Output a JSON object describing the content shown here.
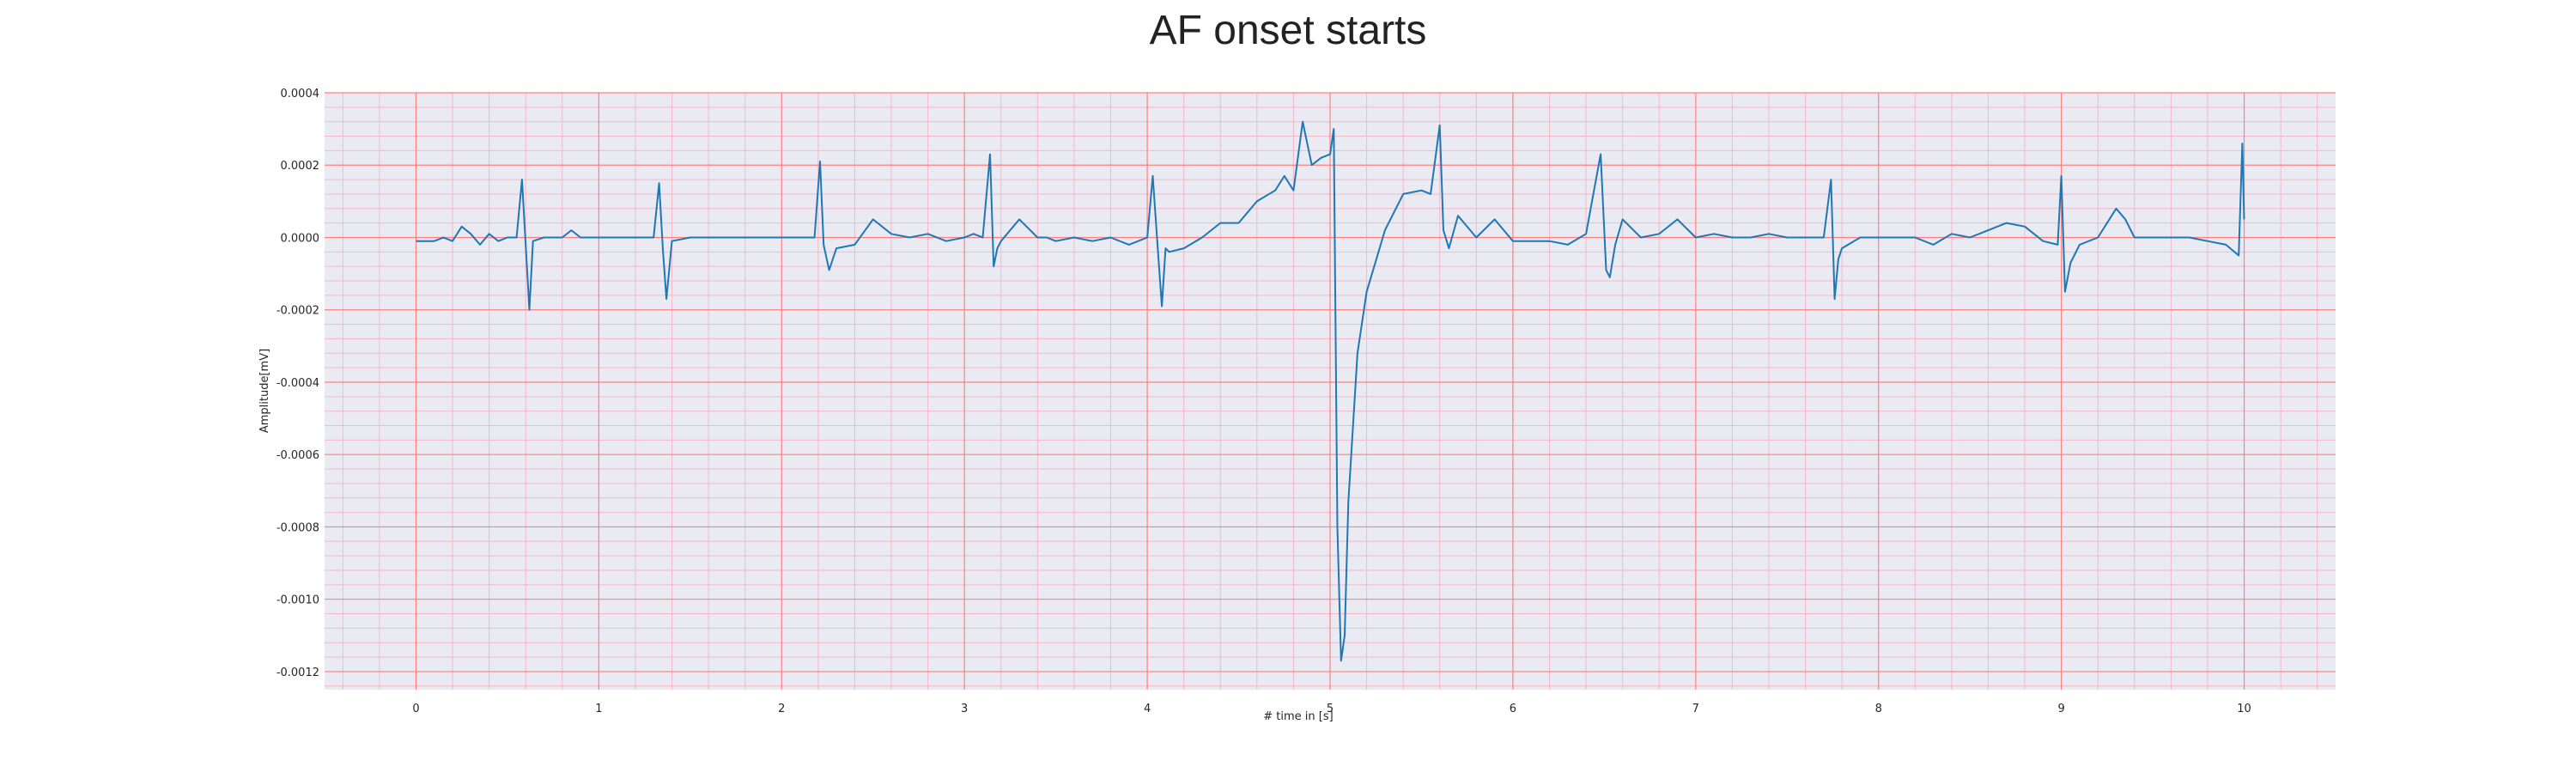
{
  "chart_data": {
    "type": "line",
    "title": "AF onset starts",
    "xlabel": "# time in [s]",
    "ylabel": "Amplitude[mV]",
    "xlim": [
      -0.5,
      10.5
    ],
    "ylim": [
      -0.00125,
      0.0004
    ],
    "xticks": [
      0,
      1,
      2,
      3,
      4,
      5,
      6,
      7,
      8,
      9,
      10
    ],
    "yticks": [
      0.0004,
      0.0002,
      0.0,
      -0.0002,
      -0.0004,
      -0.0006,
      -0.0008,
      -0.001,
      -0.0012
    ],
    "ytick_labels": [
      "0.0004",
      "0.0002",
      "0.0000",
      "-0.0002",
      "-0.0004",
      "-0.0006",
      "-0.0008",
      "-0.0010",
      "-0.0012"
    ],
    "grid": true,
    "colors": {
      "line": "#1f77b4",
      "background": "#eaeaf2",
      "major_grid": "#ff8080",
      "minor_grid": "#f4b8c8"
    },
    "series": [
      {
        "x": [
          0,
          0.1,
          0.15,
          0.2,
          0.25,
          0.3,
          0.35,
          0.4,
          0.45,
          0.5,
          0.55,
          0.58,
          0.6,
          0.62,
          0.64,
          0.7,
          0.8,
          0.85,
          0.9,
          1.0,
          1.1,
          1.2,
          1.3,
          1.33,
          1.35,
          1.37,
          1.4,
          1.5,
          1.6,
          1.7,
          1.8,
          1.9,
          2.0,
          2.1,
          2.18,
          2.21,
          2.23,
          2.26,
          2.3,
          2.4,
          2.5,
          2.6,
          2.7,
          2.8,
          2.9,
          3.0,
          3.05,
          3.1,
          3.14,
          3.16,
          3.18,
          3.2,
          3.3,
          3.4,
          3.45,
          3.5,
          3.6,
          3.7,
          3.8,
          3.9,
          4.0,
          4.03,
          4.06,
          4.08,
          4.1,
          4.12,
          4.2,
          4.3,
          4.4,
          4.5,
          4.6,
          4.7,
          4.75,
          4.8,
          4.85,
          4.9,
          4.95,
          5.0,
          5.02,
          5.04,
          5.06,
          5.08,
          5.1,
          5.15,
          5.2,
          5.3,
          5.4,
          5.5,
          5.55,
          5.6,
          5.62,
          5.65,
          5.7,
          5.8,
          5.9,
          6.0,
          6.1,
          6.2,
          6.3,
          6.4,
          6.48,
          6.51,
          6.53,
          6.56,
          6.6,
          6.7,
          6.8,
          6.9,
          7.0,
          7.1,
          7.2,
          7.3,
          7.4,
          7.5,
          7.6,
          7.7,
          7.74,
          7.76,
          7.78,
          7.8,
          7.9,
          8.0,
          8.1,
          8.2,
          8.3,
          8.4,
          8.5,
          8.6,
          8.7,
          8.8,
          8.9,
          8.98,
          9.0,
          9.02,
          9.05,
          9.1,
          9.2,
          9.3,
          9.35,
          9.4,
          9.5,
          9.6,
          9.7,
          9.8,
          9.9,
          9.97,
          9.99,
          10.0
        ],
        "y": [
          -1e-05,
          -1e-05,
          0.0,
          -1e-05,
          3e-05,
          1e-05,
          -2e-05,
          1e-05,
          -1e-05,
          0.0,
          0.0,
          0.00016,
          -2e-05,
          -0.0002,
          -1e-05,
          0.0,
          0.0,
          2e-05,
          0.0,
          0.0,
          0.0,
          0.0,
          0.0,
          0.00015,
          -3e-05,
          -0.00017,
          -1e-05,
          0.0,
          0.0,
          0.0,
          0.0,
          0.0,
          0.0,
          0.0,
          0.0,
          0.00021,
          -2e-05,
          -9e-05,
          -3e-05,
          -2e-05,
          5e-05,
          1e-05,
          0.0,
          1e-05,
          -1e-05,
          0.0,
          1e-05,
          0.0,
          0.00023,
          -8e-05,
          -3e-05,
          -1e-05,
          5e-05,
          0.0,
          0.0,
          -1e-05,
          0.0,
          -1e-05,
          0.0,
          -2e-05,
          0.0,
          0.00017,
          -5e-05,
          -0.00019,
          -3e-05,
          -4e-05,
          -3e-05,
          0.0,
          4e-05,
          4e-05,
          0.0001,
          0.00013,
          0.00017,
          0.00013,
          0.00032,
          0.0002,
          0.00022,
          0.00023,
          0.0003,
          -0.0008,
          -0.00117,
          -0.0011,
          -0.00073,
          -0.00032,
          -0.00015,
          2e-05,
          0.00012,
          0.00013,
          0.00012,
          0.00031,
          2e-05,
          -3e-05,
          6e-05,
          0.0,
          5e-05,
          -1e-05,
          -1e-05,
          -1e-05,
          -2e-05,
          1e-05,
          0.00023,
          -9e-05,
          -0.00011,
          -2e-05,
          5e-05,
          0.0,
          1e-05,
          5e-05,
          0.0,
          1e-05,
          0.0,
          0.0,
          1e-05,
          0.0,
          0.0,
          0.0,
          0.00016,
          -0.00017,
          -6e-05,
          -3e-05,
          0.0,
          0.0,
          0.0,
          0.0,
          -2e-05,
          1e-05,
          0.0,
          2e-05,
          4e-05,
          3e-05,
          -1e-05,
          -2e-05,
          0.00017,
          -0.00015,
          -7e-05,
          -2e-05,
          0.0,
          8e-05,
          5e-05,
          0.0,
          0.0,
          0.0,
          0.0,
          -1e-05,
          -2e-05,
          -5e-05,
          0.00026,
          5e-05
        ]
      }
    ]
  }
}
